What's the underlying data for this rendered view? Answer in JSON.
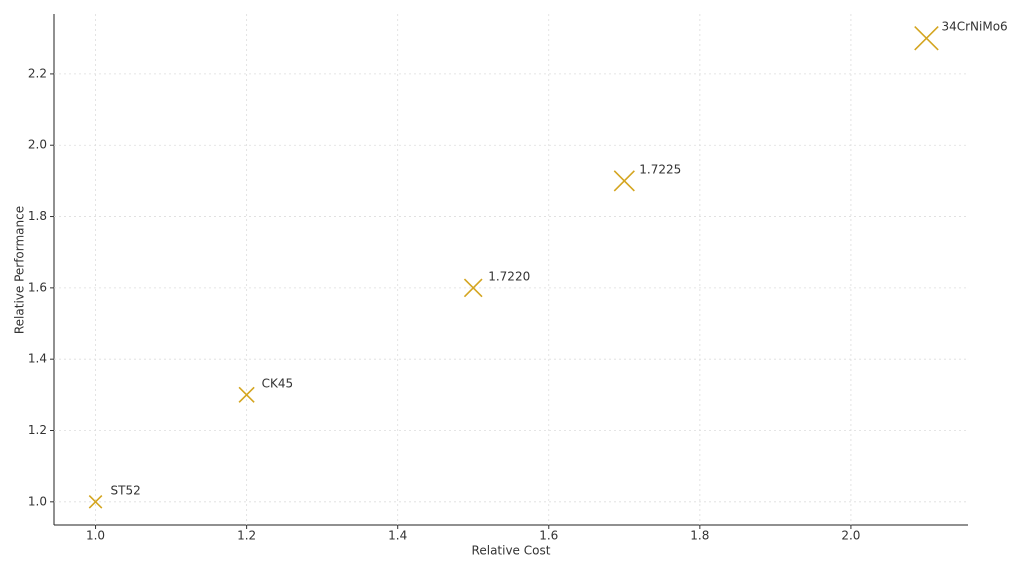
{
  "chart_data": {
    "type": "scatter",
    "xlabel": "Relative Cost",
    "ylabel": "Relative Performance",
    "series": [
      {
        "color": "#d4a520",
        "x": [
          1.0,
          1.2,
          1.5,
          1.7,
          2.1
        ],
        "values": [
          1.0,
          1.3,
          1.6,
          1.9,
          2.3
        ],
        "labels": [
          "ST52",
          "CK45",
          "1.7220",
          "1.7225",
          "34CrNiMo6"
        ]
      }
    ],
    "xlim": [
      0.945,
      2.155
    ],
    "ylim": [
      0.935,
      2.368
    ],
    "xticks": [
      {
        "value": 1.0,
        "label": "1.0"
      },
      1.2,
      1.4,
      1.6,
      1.8,
      {
        "value": 2.0,
        "label": "2.0"
      }
    ],
    "yticks": [
      {
        "value": 1.0,
        "label": "1.0"
      },
      1.2,
      1.4,
      1.6,
      1.8,
      {
        "value": 2.0,
        "label": "2.0"
      },
      2.2
    ],
    "grid": true
  }
}
